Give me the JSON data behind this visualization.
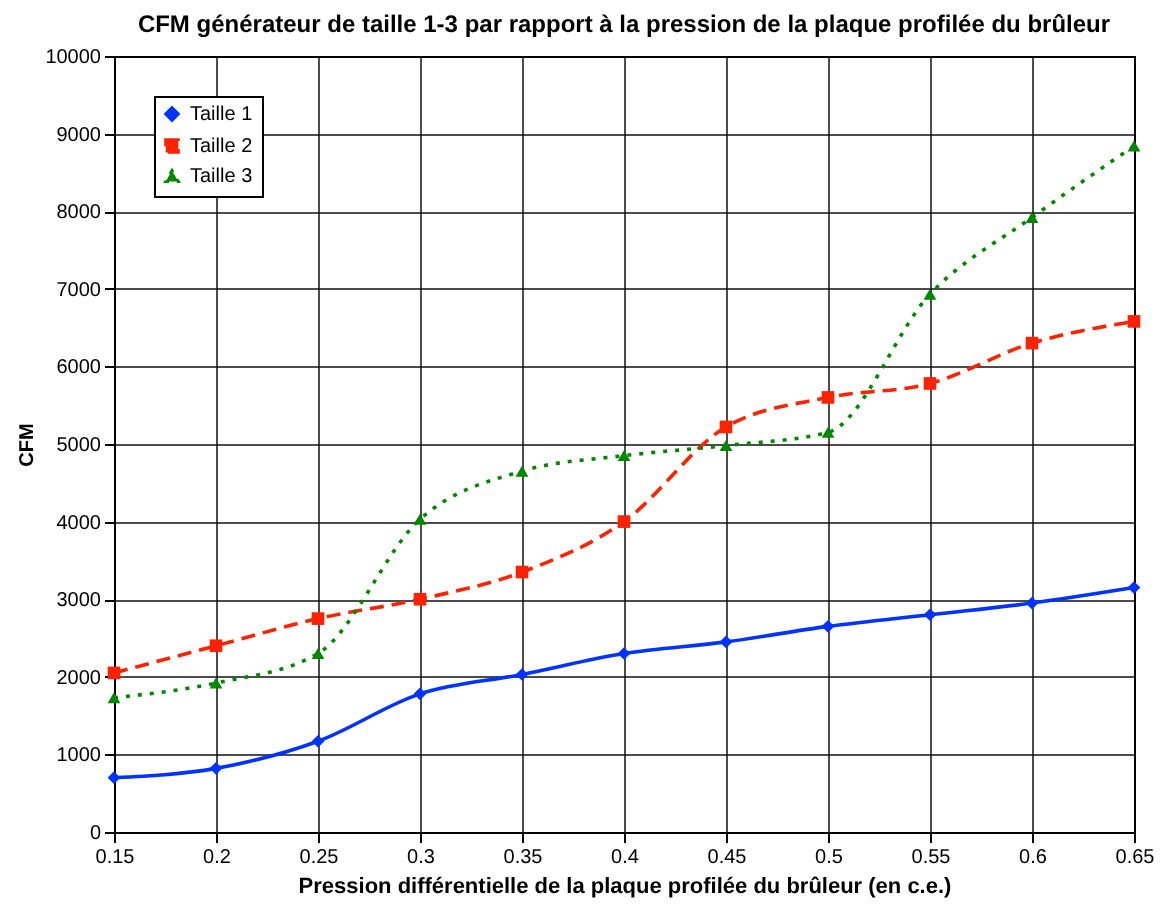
{
  "chart_data": {
    "type": "line",
    "title": "CFM générateur de taille 1-3 par rapport à la pression de la plaque profilée du brûleur",
    "xlabel": "Pression différentielle de la plaque profilée du brûleur (en c.e.)",
    "ylabel": "CFM",
    "x": [
      0.15,
      0.2,
      0.25,
      0.3,
      0.35,
      0.4,
      0.45,
      0.5,
      0.55,
      0.6,
      0.65
    ],
    "series": [
      {
        "name": "Taille 1",
        "color": "#0033ff",
        "marker": "diamond",
        "line_style": "solid",
        "values": [
          700,
          820,
          1170,
          1780,
          2030,
          2300,
          2450,
          2650,
          2800,
          2950,
          3150
        ]
      },
      {
        "name": "Taille 2",
        "color": "#ff2200",
        "marker": "square",
        "line_style": "dashed",
        "values": [
          2050,
          2400,
          2750,
          3000,
          3350,
          4000,
          5220,
          5600,
          5780,
          6300,
          6580
        ]
      },
      {
        "name": "Taille 3",
        "color": "#008800",
        "marker": "triangle",
        "line_style": "dotted",
        "values": [
          1730,
          1920,
          2300,
          4030,
          4650,
          4850,
          4980,
          5150,
          6930,
          7920,
          8840
        ]
      }
    ],
    "xlim": [
      0.15,
      0.65
    ],
    "xticks": [
      0.15,
      0.2,
      0.25,
      0.3,
      0.35,
      0.4,
      0.45,
      0.5,
      0.55,
      0.6,
      0.65
    ],
    "ylim": [
      0,
      10000
    ],
    "yticks": [
      0,
      1000,
      2000,
      3000,
      4000,
      5000,
      6000,
      7000,
      8000,
      9000,
      10000
    ],
    "grid": true,
    "legend": "top left"
  }
}
